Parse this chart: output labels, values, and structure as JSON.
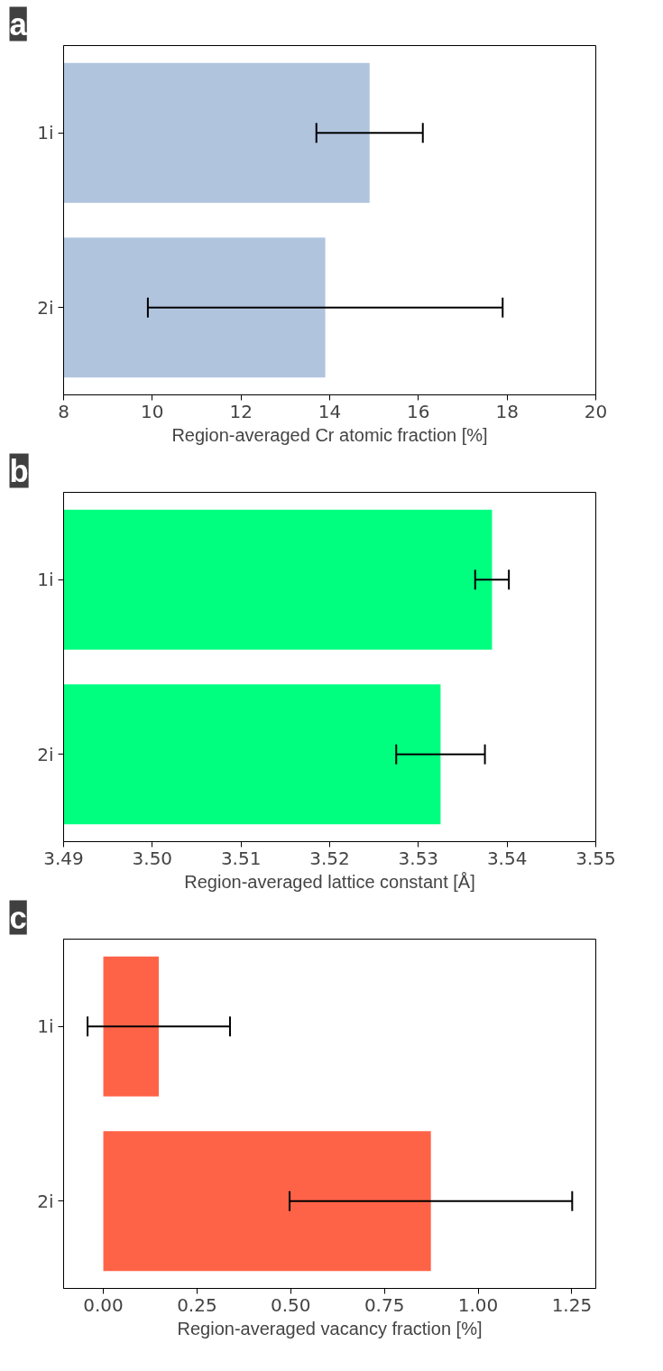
{
  "chart_data": [
    {
      "type": "bar",
      "orientation": "horizontal",
      "title": "a",
      "xlabel": "Region-averaged Cr atomic fraction [%]",
      "categories": [
        "1i",
        "2i"
      ],
      "values": [
        14.9,
        13.9
      ],
      "errors": [
        1.2,
        4.0
      ],
      "color": "#b0c4de",
      "xlim": [
        8,
        20
      ],
      "xticks": [
        8,
        10,
        12,
        14,
        16,
        18,
        20
      ],
      "grid": false,
      "legend": false
    },
    {
      "type": "bar",
      "orientation": "horizontal",
      "title": "b",
      "xlabel": "Region-averaged lattice constant [Å]",
      "categories": [
        "1i",
        "2i"
      ],
      "values": [
        3.5383,
        3.5325
      ],
      "errors": [
        0.0019,
        0.005
      ],
      "color": "#00ff7f",
      "xlim": [
        3.49,
        3.55
      ],
      "xticks": [
        {
          "value": 3.49,
          "label": "3.49"
        },
        {
          "value": 3.5,
          "label": "3.50"
        },
        {
          "value": 3.51,
          "label": "3.51"
        },
        {
          "value": 3.52,
          "label": "3.52"
        },
        {
          "value": 3.53,
          "label": "3.53"
        },
        {
          "value": 3.54,
          "label": "3.54"
        },
        {
          "value": 3.55,
          "label": "3.55"
        }
      ],
      "grid": false,
      "legend": false
    },
    {
      "type": "bar",
      "orientation": "horizontal",
      "title": "c",
      "xlabel": "Region-averaged vacancy fraction [%]",
      "categories": [
        "1i",
        "2i"
      ],
      "values": [
        0.148,
        0.874
      ],
      "errors": [
        0.19,
        0.377
      ],
      "color": "#ff6347",
      "xlim": [
        -0.106,
        1.314
      ],
      "xticks": [
        {
          "value": 0,
          "label": "0.00"
        },
        {
          "value": 0.25,
          "label": "0.25"
        },
        {
          "value": 0.5,
          "label": "0.50"
        },
        {
          "value": 0.75,
          "label": "0.75"
        },
        {
          "value": 1,
          "label": "1.00"
        },
        {
          "value": 1.25,
          "label": "1.25"
        }
      ],
      "grid": false,
      "legend": false
    }
  ]
}
